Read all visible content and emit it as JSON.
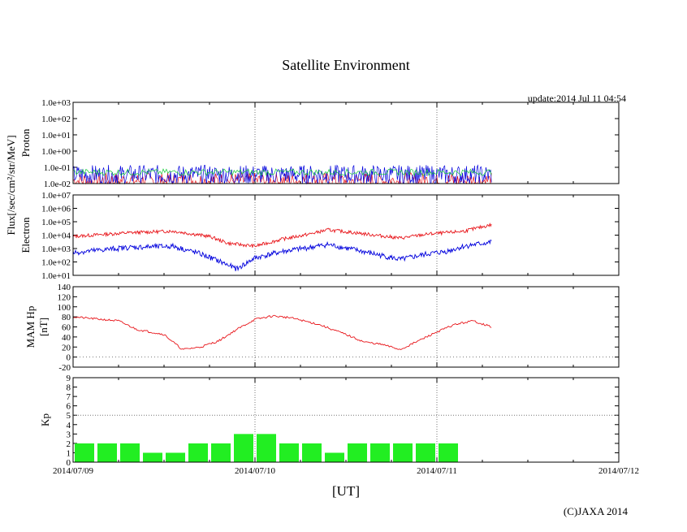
{
  "title": "Satellite Environment",
  "update_text": "update:2014 Jul 11 04:54",
  "x_axis_label": "[UT]",
  "x_tick_labels": [
    "2014/07/09",
    "2014/07/10",
    "2014/07/11",
    "2014/07/12"
  ],
  "shared_ylabel": "Flux[/sec/cm²/str/MeV]",
  "copyright": "(C)JAXA 2014",
  "colors": {
    "red": "#e8161b",
    "blue": "#0000dd",
    "green": "#11cc33",
    "kp_bar": "#22ee22",
    "grid": "#777777"
  },
  "chart_data": [
    {
      "type": "line",
      "panel": "proton",
      "ylabel": "Proton",
      "scale": "log",
      "ylim": [
        0.01,
        1000
      ],
      "y_ticks": [
        "1.0e-02",
        "1.0e-01",
        "1.0e+00",
        "1.0e+01",
        "1.0e+02",
        "1.0e+03"
      ],
      "x_range_days": [
        "2014/07/09",
        "2014/07/12"
      ],
      "series": [
        {
          "color": "red",
          "x": [
            0,
            2.3
          ],
          "values": [
            0.012,
            0.012
          ]
        },
        {
          "color": "blue",
          "x": [
            0,
            2.3
          ],
          "values": [
            0.04,
            0.04
          ]
        },
        {
          "color": "green",
          "x": [
            0,
            2.3
          ],
          "values": [
            0.05,
            0.05
          ]
        }
      ]
    },
    {
      "type": "line",
      "panel": "electron",
      "ylabel": "Electron",
      "scale": "log",
      "ylim": [
        10,
        10000000
      ],
      "y_ticks": [
        "1.0e+01",
        "1.0e+02",
        "1.0e+03",
        "1.0e+04",
        "1.0e+05",
        "1.0e+06",
        "1.0e+07"
      ],
      "x_range_days": [
        "2014/07/09",
        "2014/07/12"
      ],
      "series": [
        {
          "color": "red",
          "x": [
            0,
            0.3,
            0.55,
            0.75,
            0.85,
            1.0,
            1.15,
            1.3,
            1.4,
            1.55,
            1.8,
            1.95,
            2.05,
            2.15,
            2.3
          ],
          "values": [
            8000,
            15000,
            20000,
            8000,
            2500,
            1500,
            5000,
            12000,
            25000,
            15000,
            6000,
            12000,
            15000,
            20000,
            60000
          ]
        },
        {
          "color": "blue",
          "x": [
            0,
            0.3,
            0.55,
            0.7,
            0.8,
            0.9,
            1.0,
            1.15,
            1.3,
            1.4,
            1.55,
            1.8,
            1.95,
            2.05,
            2.15,
            2.3
          ],
          "values": [
            500,
            1200,
            1500,
            400,
            120,
            30,
            200,
            600,
            1200,
            2000,
            800,
            150,
            400,
            600,
            1500,
            3000
          ]
        }
      ]
    },
    {
      "type": "line",
      "panel": "mam_hp",
      "ylabel": "MAM Hp\n[nT]",
      "ylim": [
        -20,
        140
      ],
      "y_ticks": [
        "-20",
        "0",
        "20",
        "40",
        "60",
        "80",
        "100",
        "120",
        "140"
      ],
      "x_range_days": [
        "2014/07/09",
        "2014/07/12"
      ],
      "series": [
        {
          "color": "red",
          "x": [
            0,
            0.25,
            0.35,
            0.5,
            0.6,
            0.7,
            0.8,
            0.9,
            1.0,
            1.1,
            1.2,
            1.35,
            1.5,
            1.6,
            1.7,
            1.8,
            2.0,
            2.1,
            2.2,
            2.3
          ],
          "values": [
            80,
            72,
            55,
            45,
            15,
            20,
            32,
            55,
            75,
            82,
            78,
            65,
            45,
            30,
            25,
            15,
            50,
            65,
            72,
            60
          ]
        }
      ]
    },
    {
      "type": "bar",
      "panel": "kp",
      "ylabel": "Kp",
      "ylim": [
        0,
        9
      ],
      "y_ticks": [
        "0",
        "1",
        "2",
        "3",
        "4",
        "5",
        "6",
        "7",
        "8",
        "9"
      ],
      "threshold_line": 5,
      "bar_interval_hours": 3,
      "values": [
        2,
        2,
        2,
        1,
        1,
        2,
        2,
        3,
        3,
        2,
        2,
        1,
        2,
        2,
        2,
        2,
        2
      ]
    }
  ]
}
